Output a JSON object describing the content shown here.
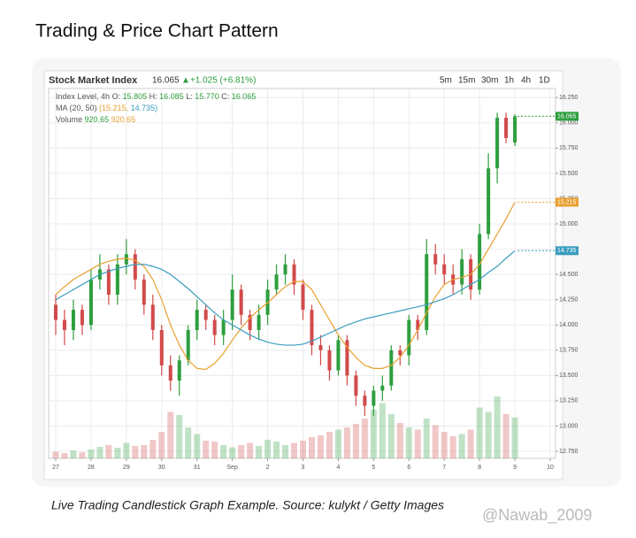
{
  "page_title": "Trading & Price Chart Pattern",
  "caption": "Live Trading Candlestick Graph Example. Source: kulykt / Getty Images",
  "watermark": "@Nawab_2009",
  "chart_data": {
    "type": "candlestick",
    "title": "Stock Market Index",
    "price": "16.065",
    "change": "▲+1.025 (+6.81%)",
    "change_color": "#2e9e3e",
    "timeframes": [
      "5m",
      "15m",
      "30m",
      "1h",
      "4h",
      "1D"
    ],
    "info_lines": [
      [
        {
          "text": "Index Level, 4h",
          "color": "#555555"
        },
        {
          "text": "O:",
          "color": "#555555"
        },
        {
          "text": "15.805",
          "color": "#2e9e3e"
        },
        {
          "text": "H:",
          "color": "#555555"
        },
        {
          "text": "16.085",
          "color": "#2e9e3e"
        },
        {
          "text": "L:",
          "color": "#555555"
        },
        {
          "text": "15.770",
          "color": "#2e9e3e"
        },
        {
          "text": "C:",
          "color": "#555555"
        },
        {
          "text": "16.065",
          "color": "#2e9e3e"
        }
      ],
      [
        {
          "text": "MA (20, 50)",
          "color": "#555555"
        },
        {
          "text": "(15.215,",
          "color": "#e8a030"
        },
        {
          "text": "14.735)",
          "color": "#3a9cc0"
        }
      ],
      [
        {
          "text": "Volume",
          "color": "#555555"
        },
        {
          "text": "920.65",
          "color": "#2e9e3e"
        },
        {
          "text": "920.65",
          "color": "#e8a030"
        }
      ]
    ],
    "x": [
      0,
      0.25,
      0.5,
      0.75,
      1,
      1.25,
      1.5,
      1.75,
      2,
      2.25,
      2.5,
      2.75,
      3,
      3.25,
      3.5,
      3.75,
      4,
      4.25,
      4.5,
      4.75,
      5,
      5.25,
      5.5,
      5.75,
      6,
      6.25,
      6.5,
      6.75,
      7,
      7.25,
      7.5,
      7.75,
      8,
      8.25,
      8.5,
      8.75,
      9,
      9.25,
      9.5,
      9.75,
      10,
      10.25,
      10.5,
      10.75,
      11,
      11.25,
      11.5,
      11.75,
      12,
      12.25,
      12.5,
      12.75,
      13
    ],
    "open": [
      14.2,
      14.05,
      13.95,
      14.15,
      14.0,
      14.45,
      14.55,
      14.3,
      14.6,
      14.7,
      14.45,
      14.2,
      13.95,
      13.6,
      13.45,
      13.65,
      13.95,
      14.15,
      14.05,
      13.9,
      14.05,
      14.35,
      14.1,
      13.95,
      14.1,
      14.35,
      14.5,
      14.6,
      14.4,
      14.15,
      13.8,
      13.75,
      13.55,
      13.85,
      13.5,
      13.3,
      13.2,
      13.35,
      13.4,
      13.75,
      13.7,
      14.05,
      13.95,
      14.7,
      14.6,
      14.5,
      14.4,
      14.65,
      14.35,
      14.9,
      15.55,
      16.05,
      15.805
    ],
    "high": [
      14.3,
      14.15,
      14.25,
      14.2,
      14.55,
      14.7,
      14.6,
      14.7,
      14.85,
      14.75,
      14.5,
      14.3,
      14.0,
      13.7,
      13.7,
      14.0,
      14.25,
      14.2,
      14.1,
      14.15,
      14.5,
      14.4,
      14.15,
      14.2,
      14.45,
      14.6,
      14.7,
      14.65,
      14.45,
      14.2,
      13.9,
      13.8,
      13.9,
      13.9,
      13.55,
      13.35,
      13.4,
      13.5,
      13.8,
      13.8,
      14.1,
      14.1,
      14.85,
      14.8,
      14.7,
      14.6,
      14.75,
      14.7,
      15.0,
      15.7,
      16.1,
      16.1,
      16.085
    ],
    "low": [
      13.9,
      13.8,
      13.85,
      13.9,
      13.95,
      14.35,
      14.2,
      14.2,
      14.5,
      14.35,
      14.1,
      13.85,
      13.5,
      13.35,
      13.3,
      13.6,
      13.85,
      13.95,
      13.8,
      13.8,
      13.95,
      14.0,
      13.85,
      13.85,
      14.0,
      14.3,
      14.4,
      14.3,
      14.05,
      13.7,
      13.6,
      13.45,
      13.5,
      13.4,
      13.2,
      13.1,
      13.1,
      13.25,
      13.35,
      13.6,
      13.6,
      13.85,
      13.9,
      14.5,
      14.4,
      14.3,
      14.3,
      14.25,
      14.3,
      14.85,
      15.4,
      15.8,
      15.77
    ],
    "close": [
      14.05,
      13.95,
      14.15,
      14.0,
      14.45,
      14.55,
      14.3,
      14.6,
      14.7,
      14.45,
      14.2,
      13.95,
      13.6,
      13.45,
      13.65,
      13.95,
      14.15,
      14.05,
      13.9,
      14.05,
      14.35,
      14.1,
      13.95,
      14.1,
      14.35,
      14.5,
      14.6,
      14.4,
      14.15,
      13.8,
      13.75,
      13.55,
      13.85,
      13.5,
      13.3,
      13.2,
      13.35,
      13.4,
      13.75,
      13.7,
      14.05,
      13.95,
      14.7,
      14.6,
      14.5,
      14.4,
      14.65,
      14.35,
      14.9,
      15.55,
      16.05,
      15.85,
      16.065
    ],
    "up_color": "#2e9e3e",
    "down_color": "#d24a4a",
    "volume": [
      150,
      120,
      180,
      140,
      200,
      260,
      300,
      240,
      350,
      280,
      300,
      420,
      600,
      1050,
      980,
      700,
      550,
      400,
      380,
      300,
      250,
      300,
      350,
      280,
      420,
      380,
      300,
      350,
      400,
      480,
      520,
      600,
      650,
      700,
      780,
      900,
      1100,
      1250,
      1000,
      800,
      700,
      650,
      900,
      750,
      600,
      500,
      550,
      650,
      1150,
      1050,
      1400,
      1000,
      920.65
    ],
    "vlim": [
      0,
      2000
    ],
    "moving_averages": [
      {
        "color": "#e8a030",
        "values": [
          14.3,
          14.38,
          14.45,
          14.5,
          14.55,
          14.6,
          14.63,
          14.65,
          14.66,
          14.64,
          14.58,
          14.45,
          14.25,
          14.0,
          13.8,
          13.65,
          13.57,
          13.56,
          13.62,
          13.72,
          13.85,
          13.97,
          14.07,
          14.15,
          14.22,
          14.3,
          14.38,
          14.43,
          14.43,
          14.35,
          14.2,
          14.05,
          13.9,
          13.78,
          13.68,
          13.6,
          13.57,
          13.57,
          13.6,
          13.68,
          13.8,
          13.95,
          14.12,
          14.28,
          14.4,
          14.45,
          14.47,
          14.5,
          14.6,
          14.75,
          14.9,
          15.05,
          15.215
        ]
      },
      {
        "color": "#3a9cc0",
        "values": [
          14.25,
          14.3,
          14.35,
          14.4,
          14.45,
          14.5,
          14.53,
          14.56,
          14.58,
          14.6,
          14.6,
          14.58,
          14.55,
          14.5,
          14.43,
          14.36,
          14.28,
          14.2,
          14.12,
          14.05,
          14.0,
          13.95,
          13.9,
          13.86,
          13.83,
          13.81,
          13.8,
          13.8,
          13.81,
          13.84,
          13.88,
          13.92,
          13.96,
          14.0,
          14.03,
          14.06,
          14.08,
          14.1,
          14.12,
          14.14,
          14.16,
          14.18,
          14.2,
          14.23,
          14.26,
          14.3,
          14.35,
          14.4,
          14.45,
          14.52,
          14.58,
          14.66,
          14.735
        ]
      }
    ],
    "xlim": [
      -0.2,
      14.15
    ],
    "xticks": [
      {
        "value": 0,
        "label": "27"
      },
      {
        "value": 1,
        "label": "28"
      },
      {
        "value": 2,
        "label": "29"
      },
      {
        "value": 3,
        "label": "30"
      },
      {
        "value": 4,
        "label": "31"
      },
      {
        "value": 5,
        "label": "Sep"
      },
      {
        "value": 6,
        "label": "2"
      },
      {
        "value": 7,
        "label": "3"
      },
      {
        "value": 8,
        "label": "4"
      },
      {
        "value": 9,
        "label": "5"
      },
      {
        "value": 10,
        "label": "6"
      },
      {
        "value": 11,
        "label": "7"
      },
      {
        "value": 12,
        "label": "8"
      },
      {
        "value": 13,
        "label": "9"
      },
      {
        "value": 14,
        "label": "10"
      }
    ],
    "ylim": [
      12.68,
      16.34
    ],
    "yticks": [
      {
        "value": 12.75,
        "label": "12.750"
      },
      {
        "value": 13,
        "label": "13.000"
      },
      {
        "value": 13.25,
        "label": "13.250"
      },
      {
        "value": 13.5,
        "label": "13.500"
      },
      {
        "value": 13.75,
        "label": "13.750"
      },
      {
        "value": 14,
        "label": "14.000"
      },
      {
        "value": 14.25,
        "label": "14.250"
      },
      {
        "value": 14.5,
        "label": "14.500"
      },
      {
        "value": 14.75,
        "label": "14.750"
      },
      {
        "value": 15,
        "label": "15.000"
      },
      {
        "value": 15.25,
        "label": "15.250"
      },
      {
        "value": 15.5,
        "label": "15.500"
      },
      {
        "value": 15.75,
        "label": "15.750"
      },
      {
        "value": 16,
        "label": "16.000"
      },
      {
        "value": 16.25,
        "label": "16.250"
      }
    ],
    "grid": true
  }
}
